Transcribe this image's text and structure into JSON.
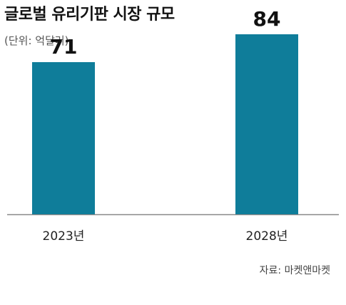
{
  "title": "글로벌 유리기판 시장 규모",
  "unit_note": "(단위: 억달러)",
  "source": "자료: 마켓앤마켓",
  "colors": {
    "bar": "#0F7D9A",
    "axis": "#888888"
  },
  "chart_data": {
    "type": "bar",
    "categories": [
      "2023년",
      "2028년"
    ],
    "values": [
      71,
      84
    ],
    "title": "글로벌 유리기판 시장 규모",
    "xlabel": "",
    "ylabel": "",
    "unit": "억달러",
    "ylim": [
      0,
      100
    ],
    "grid": false,
    "legend": "none"
  }
}
